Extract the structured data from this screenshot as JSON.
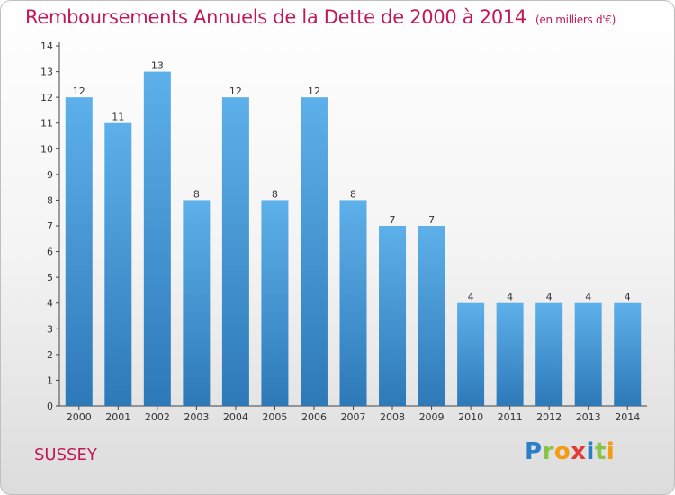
{
  "title": "Remboursements Annuels de la Dette de 2000 à 2014",
  "unit_note": "(en milliers d'€)",
  "commune": "SUSSEY",
  "logo": "Proxiti",
  "colors": {
    "accent": "#c2185b",
    "bar_top": "#5db0ea",
    "bar_bottom": "#2e79b8"
  },
  "chart_data": {
    "type": "bar",
    "title": "Remboursements Annuels de la Dette de 2000 à 2014",
    "xlabel": "",
    "ylabel": "",
    "categories": [
      "2000",
      "2001",
      "2002",
      "2003",
      "2004",
      "2005",
      "2006",
      "2007",
      "2008",
      "2009",
      "2010",
      "2011",
      "2012",
      "2013",
      "2014"
    ],
    "values": [
      12,
      11,
      13,
      8,
      12,
      8,
      12,
      8,
      7,
      7,
      4,
      4,
      4,
      4,
      4
    ],
    "ylim": [
      0,
      14
    ],
    "yticks": [
      0,
      1,
      2,
      3,
      4,
      5,
      6,
      7,
      8,
      9,
      10,
      11,
      12,
      13,
      14
    ],
    "grid": false,
    "data_labels": true
  }
}
